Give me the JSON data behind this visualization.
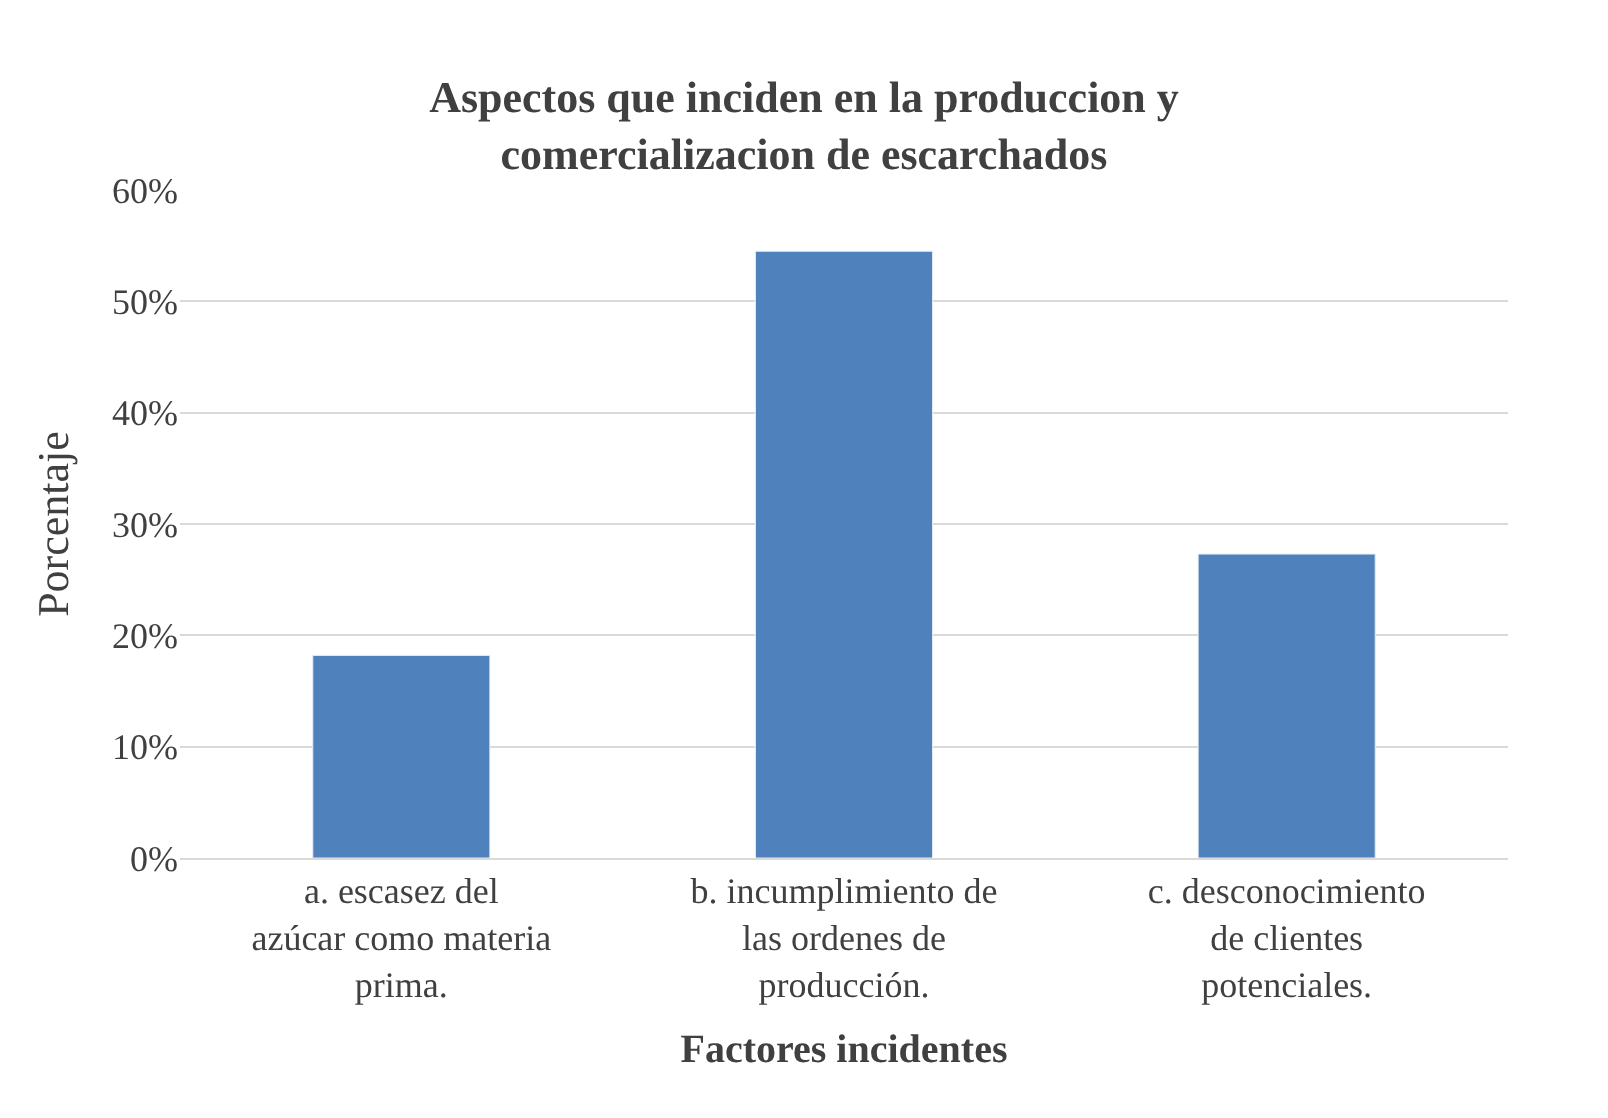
{
  "chart_data": {
    "type": "bar",
    "title": "Aspectos que inciden en la produccion y comercializacion de escarchados",
    "xlabel": "Factores incidentes",
    "ylabel": "Porcentaje",
    "categories": [
      "a. escasez del azúcar como materia prima.",
      "b. incumplimiento de las ordenes de producción.",
      "c. desconocimiento de clientes potenciales."
    ],
    "values": [
      18.2,
      54.5,
      27.3
    ],
    "color": "#4f81bd",
    "ylim": [
      0,
      60
    ],
    "yticks": [
      {
        "value": 0,
        "label": "0%"
      },
      {
        "value": 10,
        "label": "10%"
      },
      {
        "value": 20,
        "label": "20%"
      },
      {
        "value": 30,
        "label": "30%"
      },
      {
        "value": 40,
        "label": "40%"
      },
      {
        "value": 50,
        "label": "50%"
      },
      {
        "value": 60,
        "label": "60%"
      }
    ],
    "grid": "y",
    "legend": false
  }
}
